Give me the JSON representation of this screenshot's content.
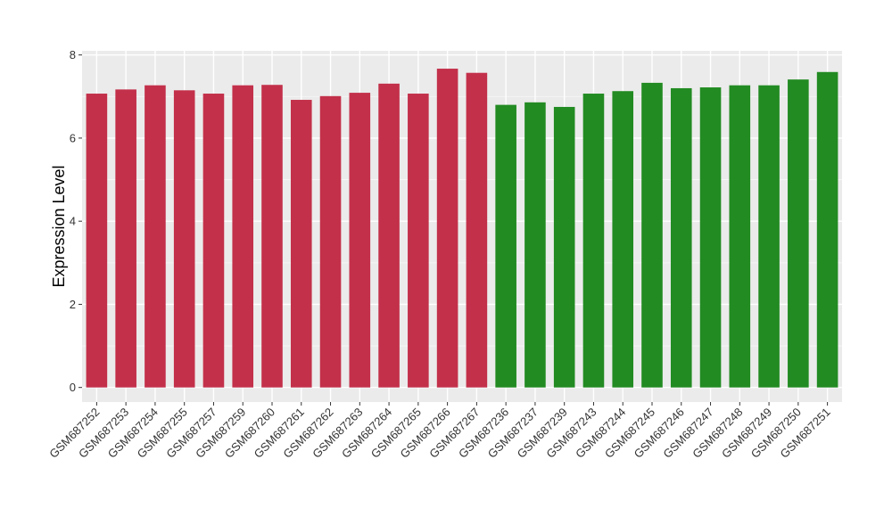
{
  "chart_data": {
    "type": "bar",
    "title": "",
    "xlabel": "",
    "ylabel": "Expression Level",
    "ylim": [
      -0.35,
      8.1
    ],
    "yticks": [
      0,
      2,
      4,
      6,
      8
    ],
    "grid": true,
    "panel_background": "#EBEBEB",
    "categories": [
      "GSM687252",
      "GSM687253",
      "GSM687254",
      "GSM687255",
      "GSM687257",
      "GSM687259",
      "GSM687260",
      "GSM687261",
      "GSM687262",
      "GSM687263",
      "GSM687264",
      "GSM687265",
      "GSM687266",
      "GSM687267",
      "GSM687236",
      "GSM687237",
      "GSM687239",
      "GSM687243",
      "GSM687244",
      "GSM687245",
      "GSM687246",
      "GSM687247",
      "GSM687248",
      "GSM687249",
      "GSM687250",
      "GSM687251"
    ],
    "values": [
      7.07,
      7.17,
      7.27,
      7.15,
      7.07,
      7.27,
      7.28,
      6.92,
      7.01,
      7.09,
      7.31,
      7.07,
      7.67,
      7.57,
      6.8,
      6.86,
      6.75,
      7.07,
      7.13,
      7.33,
      7.2,
      7.22,
      7.27,
      7.27,
      7.41,
      7.59
    ],
    "bar_colors": [
      "#C3304A",
      "#C3304A",
      "#C3304A",
      "#C3304A",
      "#C3304A",
      "#C3304A",
      "#C3304A",
      "#C3304A",
      "#C3304A",
      "#C3304A",
      "#C3304A",
      "#C3304A",
      "#C3304A",
      "#C3304A",
      "#228B22",
      "#228B22",
      "#228B22",
      "#228B22",
      "#228B22",
      "#228B22",
      "#228B22",
      "#228B22",
      "#228B22",
      "#228B22",
      "#228B22",
      "#228B22"
    ]
  }
}
